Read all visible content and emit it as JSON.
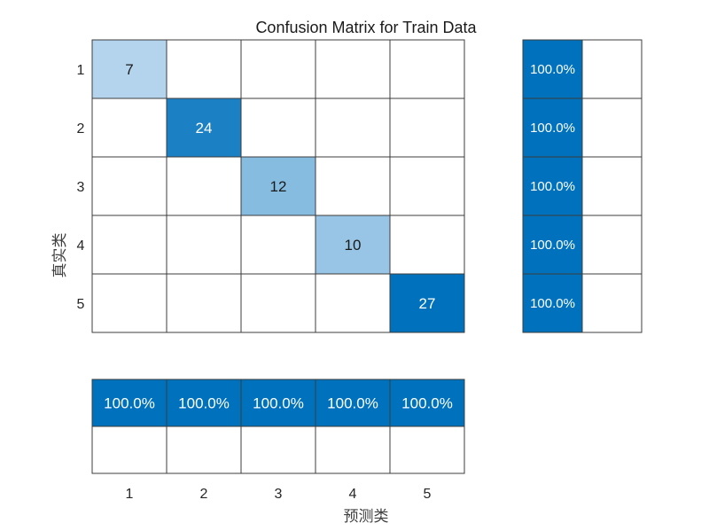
{
  "chart_data": {
    "type": "heatmap",
    "title": "Confusion Matrix for Train Data",
    "xlabel": "预测类",
    "ylabel": "真实类",
    "classes": [
      "1",
      "2",
      "3",
      "4",
      "5"
    ],
    "matrix": [
      [
        7,
        0,
        0,
        0,
        0
      ],
      [
        0,
        24,
        0,
        0,
        0
      ],
      [
        0,
        0,
        12,
        0,
        0
      ],
      [
        0,
        0,
        0,
        10,
        0
      ],
      [
        0,
        0,
        0,
        0,
        27
      ]
    ],
    "row_summary": {
      "correct": [
        "100.0%",
        "100.0%",
        "100.0%",
        "100.0%",
        "100.0%"
      ],
      "incorrect": [
        "",
        "",
        "",
        "",
        ""
      ]
    },
    "column_summary": {
      "correct": [
        "100.0%",
        "100.0%",
        "100.0%",
        "100.0%",
        "100.0%"
      ],
      "incorrect": [
        "",
        "",
        "",
        "",
        ""
      ]
    },
    "colors": {
      "summary_fill": "#0072BD",
      "diag_light": "#b3d4ec",
      "diag_dark": "#0072BD",
      "empty": "#ffffff"
    }
  }
}
